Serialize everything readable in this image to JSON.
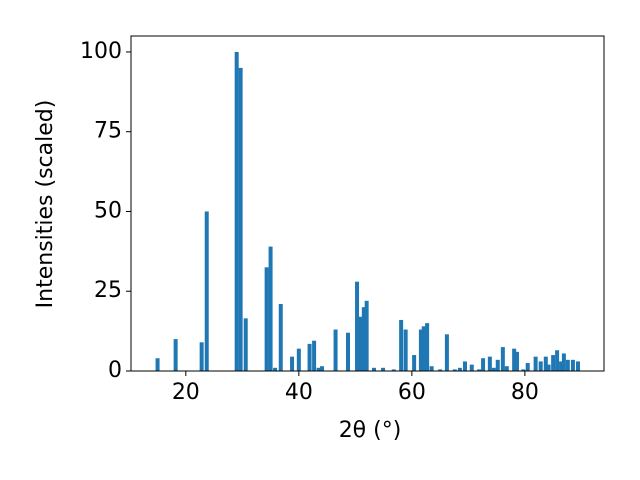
{
  "chart_data": {
    "type": "bar",
    "xlabel": "2θ (°)",
    "ylabel": "Intensities (scaled)",
    "x": [
      15.0,
      18.2,
      22.8,
      23.7,
      29.0,
      29.7,
      30.6,
      34.3,
      35.0,
      35.8,
      36.8,
      38.8,
      40.0,
      41.9,
      42.7,
      43.5,
      44.1,
      46.5,
      48.7,
      50.3,
      51.0,
      51.5,
      52.0,
      53.3,
      54.9,
      56.8,
      58.1,
      58.9,
      60.4,
      61.6,
      62.1,
      62.7,
      63.5,
      65.0,
      66.2,
      67.6,
      68.5,
      69.4,
      70.6,
      71.9,
      72.6,
      73.8,
      74.5,
      75.2,
      76.1,
      76.8,
      78.1,
      78.6,
      79.7,
      80.5,
      81.9,
      82.8,
      83.7,
      84.2,
      85.0,
      85.7,
      86.4,
      86.9,
      87.6,
      88.5,
      89.4
    ],
    "values": [
      4,
      10,
      9,
      50,
      100,
      95,
      16.5,
      32.5,
      39,
      1,
      21,
      4.5,
      7,
      8.5,
      9.5,
      1,
      1.5,
      13,
      12,
      28,
      17,
      20,
      22,
      1,
      1,
      0.5,
      16,
      13,
      5,
      13,
      14,
      15,
      1.5,
      0.5,
      11.5,
      0.5,
      1,
      3,
      2,
      0.5,
      4,
      4.5,
      1,
      3.5,
      7.5,
      1.5,
      7,
      6,
      0.5,
      2.5,
      4.5,
      3,
      4.5,
      2,
      5,
      6.5,
      3,
      5.5,
      3.5,
      3.5,
      3
    ],
    "color": "#1f77b4",
    "xlim": [
      10.3,
      94.0
    ],
    "ylim": [
      0,
      105
    ],
    "xticks": [
      20,
      40,
      60,
      80
    ],
    "yticks": [
      0,
      25,
      50,
      75,
      100
    ]
  }
}
